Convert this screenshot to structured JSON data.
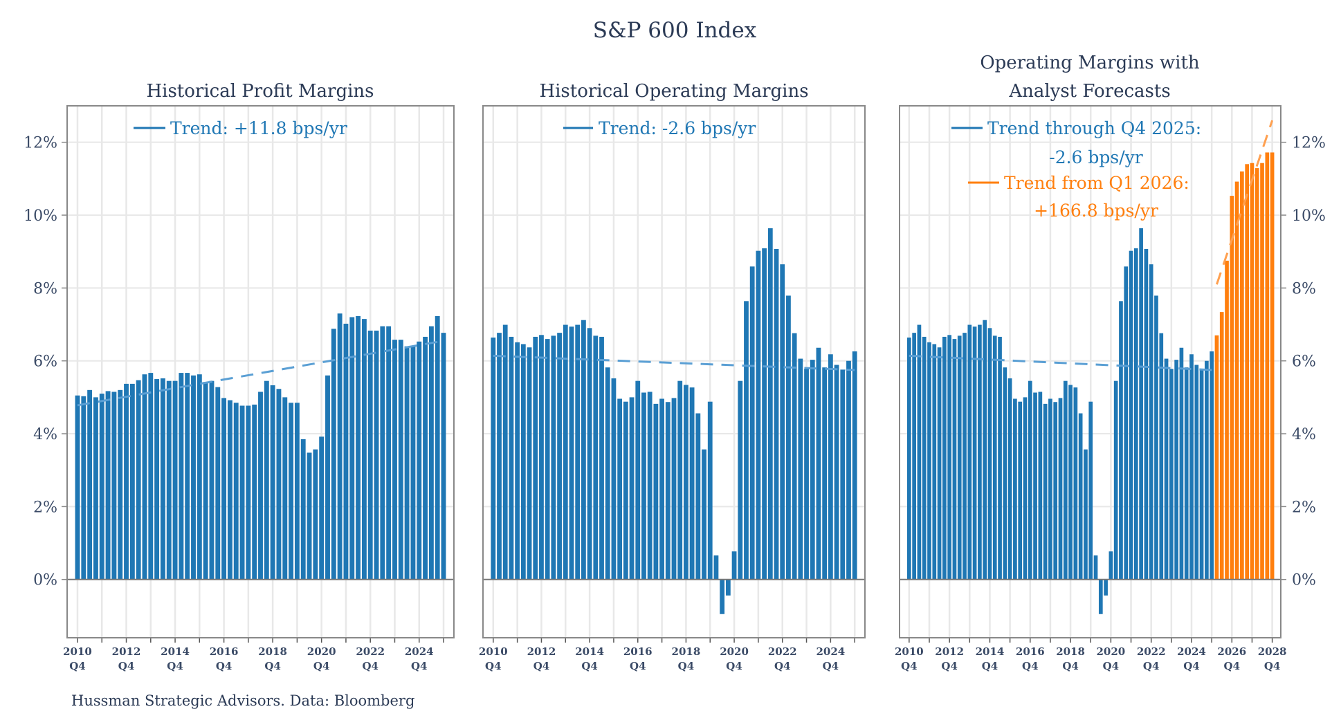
{
  "title": "S&P 600 Index",
  "footer": "Hussman Strategic Advisors. Data: Bloomberg",
  "colors": {
    "historical": "#1f77b4",
    "forecast": "#ff7f0e",
    "trend_hist": "#5a9fd4",
    "trend_fore": "#ffa050",
    "text": "#2b3a55"
  },
  "chart_data": [
    {
      "type": "bar",
      "title": "Historical Profit Margins",
      "x_start": "2010 Q4",
      "x_end": "2025 Q4",
      "frequency": "quarterly",
      "x_tick_labels": [
        [
          "2010",
          "Q4"
        ],
        [
          "2012",
          "Q4"
        ],
        [
          "2014",
          "Q4"
        ],
        [
          "2016",
          "Q4"
        ],
        [
          "2018",
          "Q4"
        ],
        [
          "2020",
          "Q4"
        ],
        [
          "2022",
          "Q4"
        ],
        [
          "2024",
          "Q4"
        ]
      ],
      "y_tick_labels": [
        "0%",
        "2%",
        "4%",
        "6%",
        "8%",
        "10%",
        "12%"
      ],
      "y_axis_side": "left",
      "ylim": [
        -1.6,
        13.0
      ],
      "grid": true,
      "series": [
        {
          "color": "#1f77b4",
          "values": [
            5.05,
            5.03,
            5.2,
            5.0,
            5.1,
            5.17,
            5.15,
            5.2,
            5.37,
            5.37,
            5.47,
            5.63,
            5.67,
            5.5,
            5.52,
            5.45,
            5.45,
            5.67,
            5.67,
            5.6,
            5.63,
            5.42,
            5.45,
            5.28,
            4.98,
            4.92,
            4.85,
            4.77,
            4.77,
            4.8,
            5.15,
            5.45,
            5.33,
            5.23,
            5.0,
            4.85,
            4.85,
            3.85,
            3.48,
            3.57,
            3.92,
            5.6,
            6.88,
            7.3,
            7.02,
            7.2,
            7.23,
            7.15,
            6.83,
            6.83,
            6.95,
            6.95,
            6.58,
            6.58,
            6.4,
            6.4,
            6.53,
            6.66,
            6.95,
            7.23,
            6.77
          ]
        }
      ],
      "trend_lines": [
        {
          "label": "Trend: +11.8 bps/yr",
          "color": "#1f77b4",
          "from": 4.78,
          "to": 6.55
        }
      ]
    },
    {
      "type": "bar",
      "title": "Historical Operating Margins",
      "x_start": "2010 Q4",
      "x_end": "2025 Q4",
      "frequency": "quarterly",
      "x_tick_labels": [
        [
          "2010",
          "Q4"
        ],
        [
          "2012",
          "Q4"
        ],
        [
          "2014",
          "Q4"
        ],
        [
          "2016",
          "Q4"
        ],
        [
          "2018",
          "Q4"
        ],
        [
          "2020",
          "Q4"
        ],
        [
          "2022",
          "Q4"
        ],
        [
          "2024",
          "Q4"
        ]
      ],
      "y_axis_side": "none",
      "ylim": [
        -1.6,
        13.0
      ],
      "grid": true,
      "series": [
        {
          "color": "#1f77b4",
          "values": [
            6.64,
            6.77,
            6.99,
            6.66,
            6.51,
            6.46,
            6.37,
            6.66,
            6.71,
            6.6,
            6.69,
            6.77,
            6.99,
            6.94,
            6.99,
            7.12,
            6.9,
            6.69,
            6.66,
            5.82,
            5.52,
            4.96,
            4.88,
            5.0,
            5.45,
            5.13,
            5.15,
            4.82,
            4.96,
            4.87,
            4.98,
            5.45,
            5.34,
            5.27,
            4.56,
            3.57,
            4.88,
            0.66,
            -0.95,
            -0.44,
            0.77,
            5.45,
            7.64,
            8.59,
            9.02,
            9.09,
            9.64,
            9.07,
            8.65,
            7.79,
            6.76,
            6.06,
            5.78,
            6.03,
            6.36,
            5.82,
            6.18,
            5.89,
            5.76,
            6.0,
            6.26
          ]
        }
      ],
      "trend_lines": [
        {
          "label": "Trend: -2.6 bps/yr",
          "color": "#1f77b4",
          "from": 6.14,
          "to": 5.75
        }
      ]
    },
    {
      "type": "bar",
      "title_lines": [
        "Operating Margins with",
        "Analyst Forecasts"
      ],
      "x_start": "2010 Q4",
      "x_end": "2028 Q4",
      "frequency": "quarterly",
      "x_tick_labels": [
        [
          "2010",
          "Q4"
        ],
        [
          "2012",
          "Q4"
        ],
        [
          "2014",
          "Q4"
        ],
        [
          "2016",
          "Q4"
        ],
        [
          "2018",
          "Q4"
        ],
        [
          "2020",
          "Q4"
        ],
        [
          "2022",
          "Q4"
        ],
        [
          "2024",
          "Q4"
        ],
        [
          "2026",
          "Q4"
        ],
        [
          "2028",
          "Q4"
        ]
      ],
      "y_tick_labels": [
        "0%",
        "2%",
        "4%",
        "6%",
        "8%",
        "10%",
        "12%"
      ],
      "y_axis_side": "right",
      "ylim": [
        -1.6,
        13.0
      ],
      "grid": true,
      "series": [
        {
          "color": "#1f77b4",
          "start_index": 0,
          "values": [
            6.64,
            6.77,
            6.99,
            6.66,
            6.51,
            6.46,
            6.37,
            6.66,
            6.71,
            6.6,
            6.69,
            6.77,
            6.99,
            6.94,
            6.99,
            7.12,
            6.9,
            6.69,
            6.66,
            5.82,
            5.52,
            4.96,
            4.88,
            5.0,
            5.45,
            5.13,
            5.15,
            4.82,
            4.96,
            4.87,
            4.98,
            5.45,
            5.34,
            5.27,
            4.56,
            3.57,
            4.88,
            0.66,
            -0.95,
            -0.44,
            0.77,
            5.45,
            7.64,
            8.59,
            9.02,
            9.09,
            9.64,
            9.07,
            8.65,
            7.79,
            6.76,
            6.06,
            5.78,
            6.03,
            6.36,
            5.82,
            6.18,
            5.89,
            5.76,
            6.0,
            6.26
          ]
        },
        {
          "color": "#ff7f0e",
          "start_index": 61,
          "values": [
            6.7,
            7.34,
            8.75,
            10.53,
            10.92,
            11.2,
            11.4,
            11.43,
            11.29,
            11.43,
            11.72,
            11.72
          ]
        }
      ],
      "trend_lines": [
        {
          "label": "Trend through Q4 2025:",
          "label2": "-2.6 bps/yr",
          "color": "#1f77b4",
          "from": 6.14,
          "to": 5.75,
          "start_index": 0,
          "end_index": 60
        },
        {
          "label": "Trend from Q1 2026:",
          "label2": "+166.8 bps/yr",
          "color": "#ff7f0e",
          "from": 8.1,
          "to": 12.6,
          "start_index": 61,
          "end_index": 72
        }
      ]
    }
  ]
}
